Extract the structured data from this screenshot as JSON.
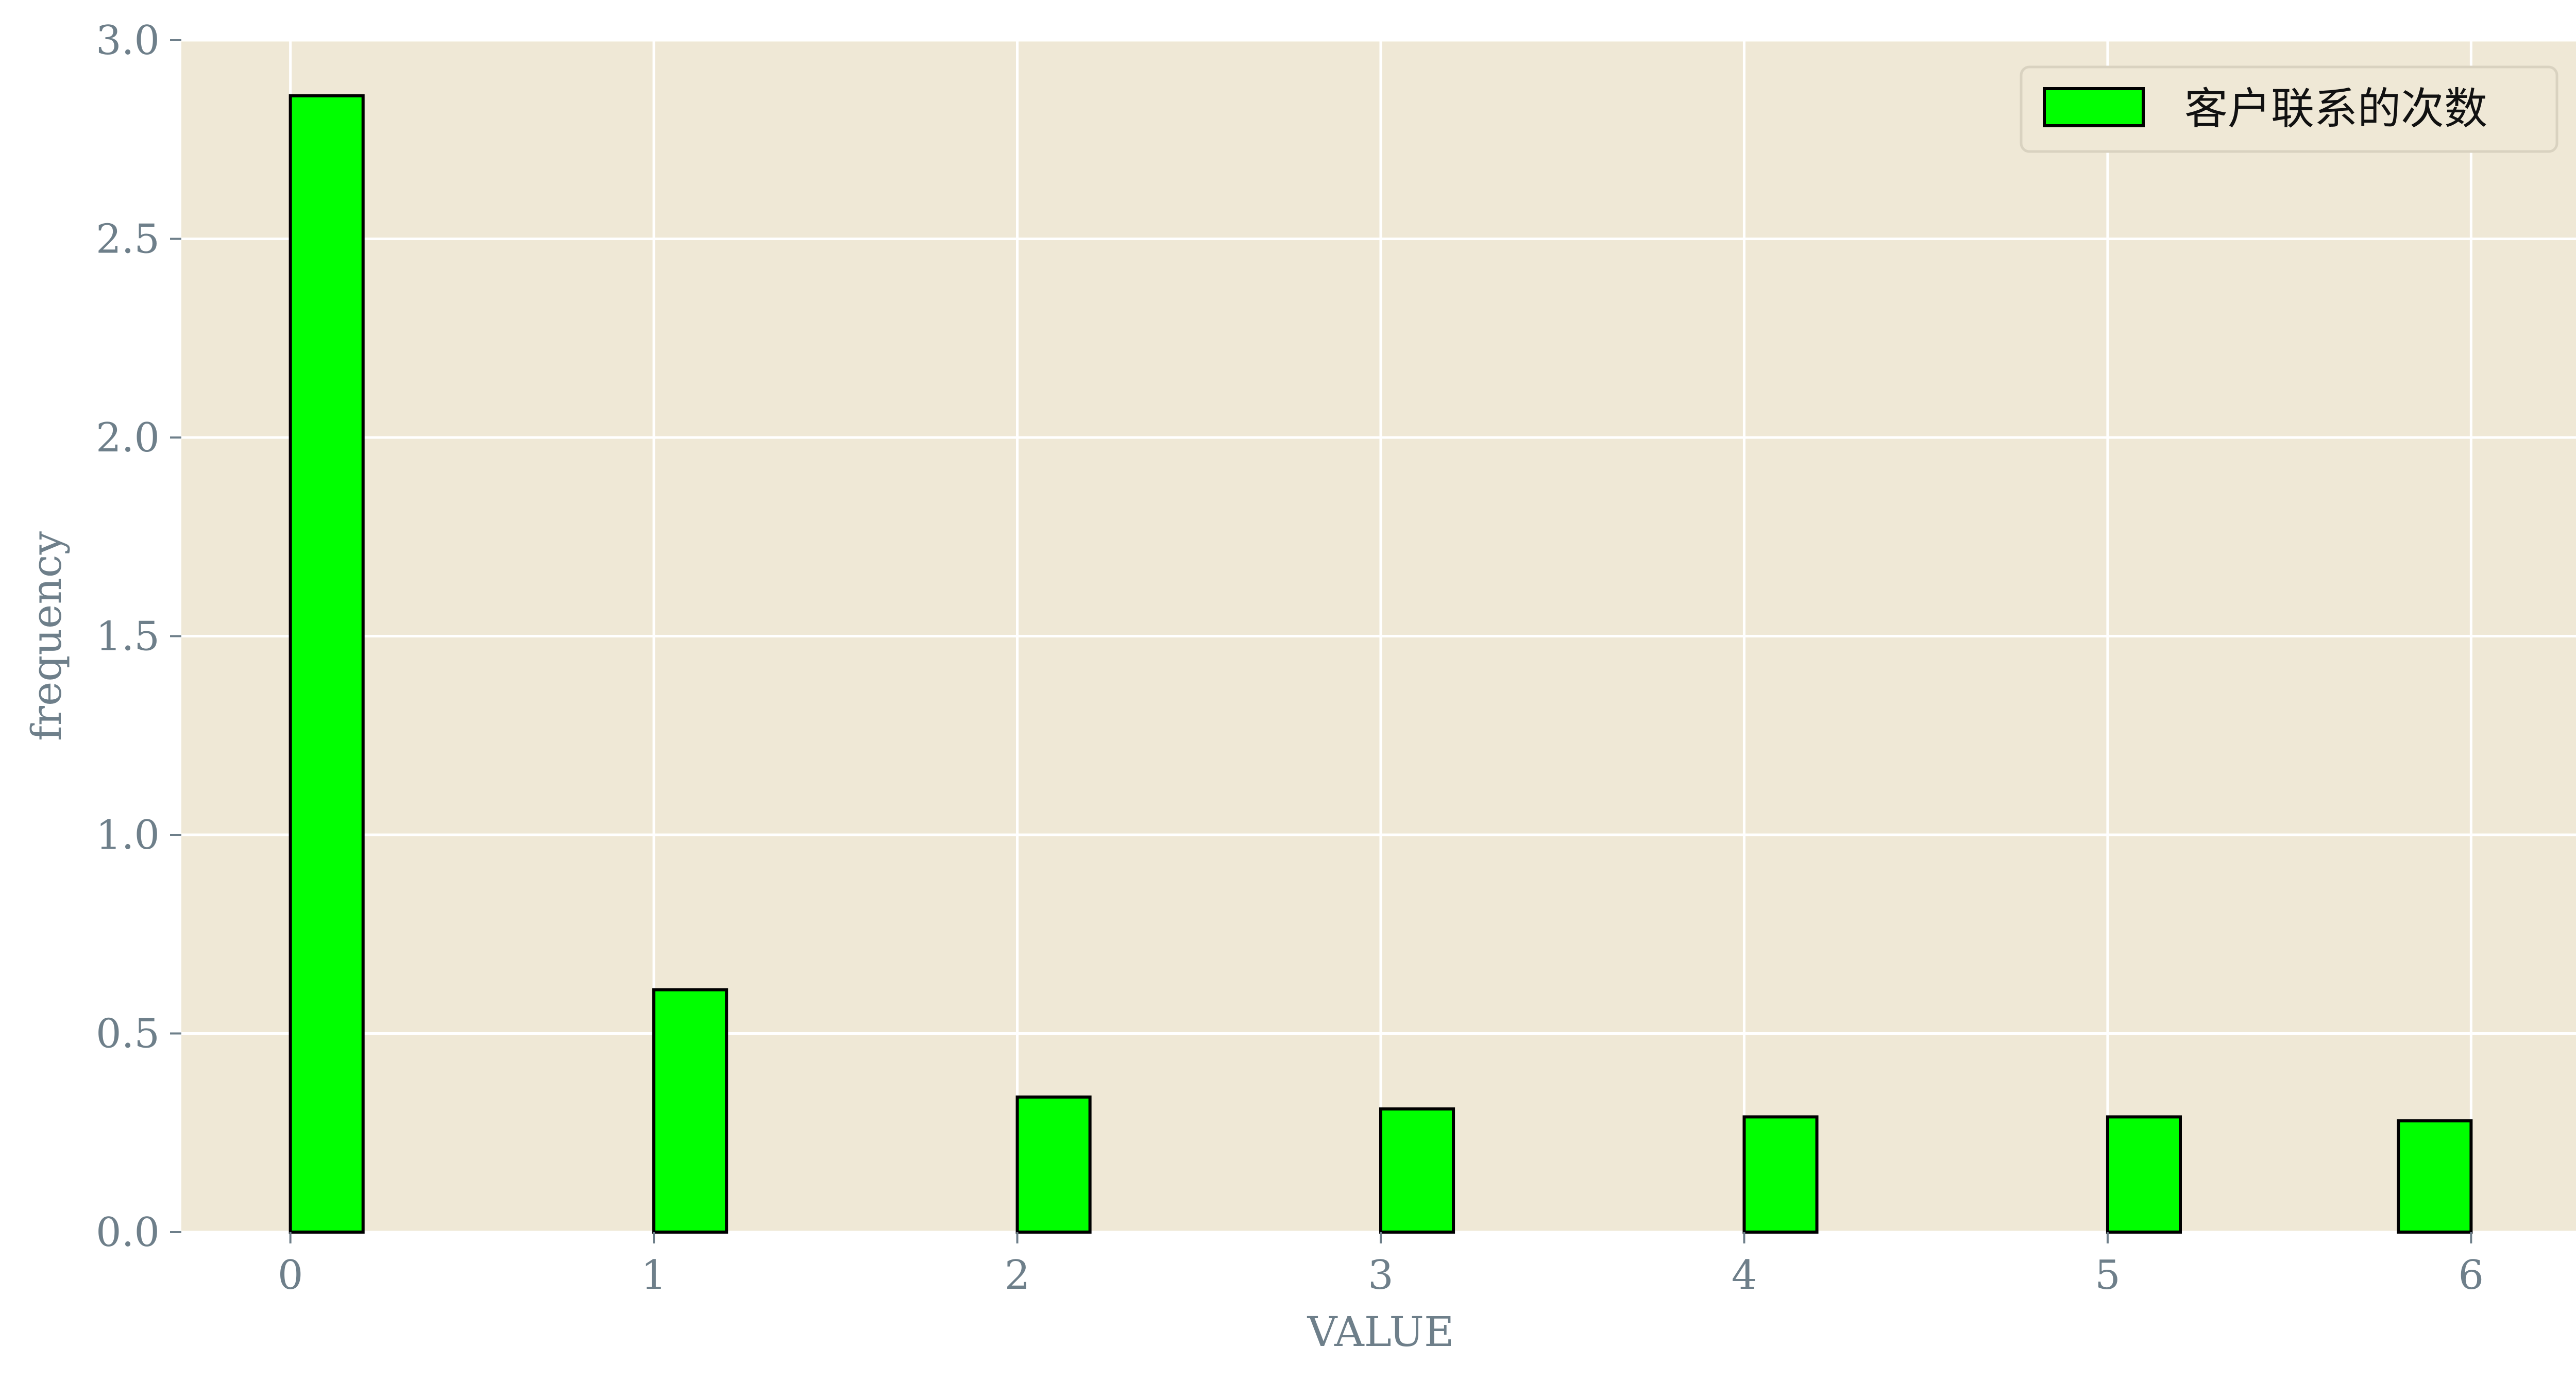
{
  "chart_data": {
    "type": "bar",
    "x": [
      0,
      1,
      2,
      3,
      4,
      5,
      6
    ],
    "values": [
      2.86,
      0.61,
      0.34,
      0.31,
      0.29,
      0.29,
      0.28
    ],
    "xlabel": "VALUE",
    "ylabel": "frequency",
    "xlim": [
      -0.3,
      6.3
    ],
    "ylim": [
      0,
      3.0
    ],
    "xticks": [
      "0",
      "1",
      "2",
      "3",
      "4",
      "5",
      "6"
    ],
    "yticks": [
      "0.0",
      "0.5",
      "1.0",
      "1.5",
      "2.0",
      "2.5",
      "3.0"
    ],
    "ytick_values": [
      0,
      0.5,
      1.0,
      1.5,
      2.0,
      2.5,
      3.0
    ],
    "grid": true,
    "legend": {
      "position": "top-right",
      "entries": [
        "客户联系的次数"
      ]
    },
    "colors": {
      "bar_fill": "#00ff00",
      "bar_edge": "#000000",
      "plot_background": "#efe8d6",
      "grid": "#ffffff"
    }
  }
}
